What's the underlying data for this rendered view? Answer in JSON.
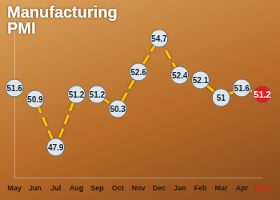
{
  "chart_data": {
    "type": "line",
    "title": "Manufacturing PMI",
    "categories": [
      "May",
      "Jun",
      "Jul",
      "Aug",
      "Sep",
      "Oct",
      "Nov",
      "Dec",
      "Jan",
      "Feb",
      "Mar",
      "Apr",
      "MAY"
    ],
    "values": [
      51.6,
      50.9,
      47.9,
      51.2,
      51.2,
      50.3,
      52.6,
      54.7,
      52.4,
      52.1,
      51.0,
      51.6,
      51.2
    ],
    "color": "#f5c400",
    "colors": [
      "#dbe6ee",
      "#dbe6ee",
      "#dbe6ee",
      "#dbe6ee",
      "#dbe6ee",
      "#dbe6ee",
      "#dbe6ee",
      "#dbe6ee",
      "#dbe6ee",
      "#dbe6ee",
      "#dbe6ee",
      "#dbe6ee",
      "#e0201b"
    ],
    "ylim": [
      46,
      56
    ],
    "grid": false,
    "data_labels": true,
    "tick_labels": "x",
    "marker": "circle",
    "line_style": "dashed"
  }
}
